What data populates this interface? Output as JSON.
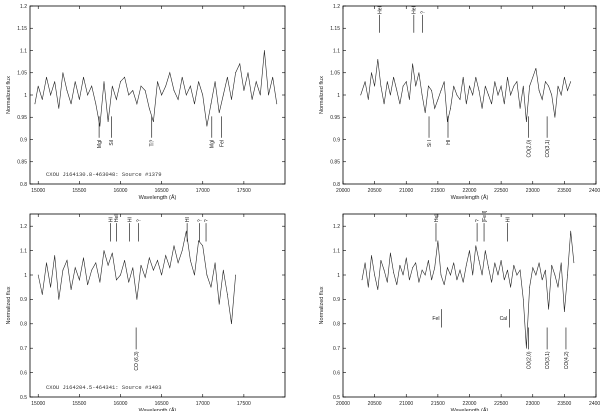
{
  "chart_data": [
    {
      "type": "line",
      "xlim": [
        14900,
        18000
      ],
      "ylim": [
        0.8,
        1.2
      ],
      "xticks": [
        15000,
        15500,
        16000,
        16500,
        17000,
        17500
      ],
      "yticks": [
        0.8,
        0.85,
        0.9,
        0.95,
        1,
        1.05,
        1.1,
        1.15,
        1.2
      ],
      "xlabel": "Wavelength (Å)",
      "ylabel": "Normalized flux",
      "caption": "CXOU J164130.8-463048: Source #1379",
      "series": [
        {
          "x": [
            14960,
            15000,
            15050,
            15100,
            15150,
            15200,
            15250,
            15300,
            15350,
            15400,
            15450,
            15500,
            15550,
            15600,
            15650,
            15700,
            15750,
            15800,
            15850,
            15900,
            15950,
            16000,
            16050,
            16100,
            16150,
            16200,
            16250,
            16300,
            16350,
            16400,
            16450,
            16500,
            16550,
            16600,
            16650,
            16700,
            16750,
            16800,
            16850,
            16900,
            16950,
            17000,
            17050,
            17100,
            17150,
            17200,
            17250,
            17300,
            17350,
            17400,
            17450,
            17500,
            17550,
            17600,
            17650,
            17700,
            17750,
            17800,
            17850,
            17900
          ],
          "y": [
            0.98,
            1.02,
            0.99,
            1.04,
            1.0,
            1.03,
            0.97,
            1.05,
            1.01,
            0.98,
            1.03,
            0.99,
            1.04,
            1.0,
            1.02,
            0.98,
            0.93,
            1.03,
            0.94,
            1.02,
            0.99,
            1.03,
            1.04,
            1.0,
            1.01,
            0.98,
            1.02,
            1.01,
            0.97,
            0.94,
            1.03,
            1.0,
            1.02,
            1.05,
            1.01,
            0.99,
            1.04,
            1.0,
            1.02,
            0.98,
            1.03,
            1.0,
            0.93,
            0.98,
            1.03,
            0.96,
            1.0,
            1.04,
            0.99,
            1.05,
            1.07,
            1.01,
            1.05,
            0.99,
            1.03,
            1.0,
            1.1,
            1.0,
            1.04,
            0.98
          ]
        }
      ],
      "annotations": [
        {
          "label": "MgI",
          "x": 15740,
          "dir": "down"
        },
        {
          "label": "SiI",
          "x": 15890,
          "dir": "down"
        },
        {
          "label": "Ti?",
          "x": 16380,
          "dir": "down"
        },
        {
          "label": "MgI",
          "x": 17110,
          "dir": "down"
        },
        {
          "label": "FeI",
          "x": 17230,
          "dir": "down"
        }
      ]
    },
    {
      "type": "line",
      "xlim": [
        20000,
        24000
      ],
      "ylim": [
        0.8,
        1.2
      ],
      "xticks": [
        20000,
        20500,
        21000,
        21500,
        22000,
        22500,
        23000,
        23500,
        24000
      ],
      "yticks": [
        0.8,
        0.85,
        0.9,
        0.95,
        1,
        1.05,
        1.1,
        1.15,
        1.2
      ],
      "xlabel": "Wavelength (Å)",
      "ylabel": "Normalized flux",
      "series": [
        {
          "x": [
            20280,
            20350,
            20400,
            20450,
            20500,
            20550,
            20600,
            20650,
            20700,
            20750,
            20800,
            20850,
            20900,
            20950,
            21000,
            21050,
            21100,
            21150,
            21200,
            21250,
            21300,
            21350,
            21400,
            21450,
            21500,
            21550,
            21600,
            21650,
            21700,
            21750,
            21800,
            21850,
            21900,
            21950,
            22000,
            22050,
            22100,
            22150,
            22200,
            22250,
            22300,
            22350,
            22400,
            22450,
            22500,
            22550,
            22600,
            22650,
            22700,
            22750,
            22800,
            22850,
            22900,
            22950,
            23000,
            23050,
            23100,
            23150,
            23200,
            23250,
            23300,
            23350,
            23400,
            23450,
            23500,
            23550,
            23600
          ],
          "y": [
            1.0,
            1.03,
            0.99,
            1.05,
            1.02,
            1.08,
            1.02,
            0.98,
            1.03,
            1.0,
            1.04,
            1.01,
            0.98,
            1.02,
            1.03,
            0.99,
            1.07,
            1.02,
            1.05,
            1.0,
            0.96,
            1.02,
            1.01,
            0.97,
            0.99,
            1.01,
            1.03,
            0.94,
            0.97,
            1.02,
            1.0,
            0.99,
            1.04,
            0.98,
            1.02,
            1.0,
            1.04,
            1.01,
            0.97,
            1.02,
            1.0,
            0.98,
            1.03,
            1.0,
            1.02,
            0.98,
            1.04,
            1.0,
            1.02,
            1.03,
            0.97,
            1.02,
            0.94,
            1.02,
            1.04,
            1.06,
            1.01,
            0.99,
            1.03,
            1.02,
            1.0,
            0.95,
            1.02,
            1.0,
            1.04,
            1.01,
            1.03
          ]
        }
      ],
      "annotations": [
        {
          "label": "HeI",
          "x": 20580,
          "dir": "up"
        },
        {
          "label": "HeI",
          "x": 21120,
          "dir": "up"
        },
        {
          "label": "?",
          "x": 21260,
          "dir": "up"
        },
        {
          "label": "Si I",
          "x": 21360,
          "dir": "down"
        },
        {
          "label": "HI",
          "x": 21660,
          "dir": "down"
        },
        {
          "label": "CO(2,0)",
          "x": 22935,
          "dir": "down"
        },
        {
          "label": "CO(3,1)",
          "x": 23227,
          "dir": "down"
        }
      ]
    },
    {
      "type": "line",
      "xlim": [
        14900,
        18000
      ],
      "ylim": [
        0.5,
        1.25
      ],
      "xticks": [
        15000,
        15500,
        16000,
        16500,
        17000,
        17500
      ],
      "yticks": [
        0.5,
        0.6,
        0.7,
        0.8,
        0.9,
        1,
        1.1,
        1.2
      ],
      "xlabel": "Wavelength (Å)",
      "ylabel": "Normalized flux",
      "caption": "CXOU J164204.5-464341: Source #1403",
      "series": [
        {
          "x": [
            15000,
            15050,
            15100,
            15150,
            15200,
            15250,
            15300,
            15350,
            15400,
            15450,
            15500,
            15550,
            15600,
            15650,
            15700,
            15750,
            15800,
            15850,
            15900,
            15950,
            16000,
            16050,
            16100,
            16150,
            16200,
            16250,
            16300,
            16350,
            16400,
            16450,
            16500,
            16550,
            16600,
            16650,
            16700,
            16750,
            16800,
            16850,
            16900,
            16950,
            17000,
            17050,
            17100,
            17150,
            17200,
            17250,
            17300,
            17350,
            17400
          ],
          "y": [
            1.0,
            0.92,
            1.05,
            0.95,
            1.08,
            0.9,
            1.02,
            1.06,
            0.94,
            1.03,
            0.98,
            1.07,
            0.96,
            1.02,
            1.05,
            0.97,
            1.1,
            1.04,
            1.09,
            0.98,
            1.0,
            1.06,
            0.97,
            1.03,
            0.9,
            1.04,
            0.99,
            1.07,
            1.02,
            1.06,
            1.0,
            1.08,
            1.03,
            1.12,
            1.05,
            1.1,
            1.18,
            1.06,
            1.0,
            1.14,
            1.12,
            1.0,
            0.95,
            1.05,
            0.88,
            1.02,
            0.92,
            0.8,
            1.0
          ]
        }
      ],
      "annotations": [
        {
          "label": "HI",
          "x": 15880,
          "dir": "up"
        },
        {
          "label": "HeI",
          "x": 15950,
          "dir": "up"
        },
        {
          "label": "HI",
          "x": 16110,
          "dir": "up"
        },
        {
          "label": "?",
          "x": 16220,
          "dir": "up"
        },
        {
          "label": "CO (6,3)",
          "x": 16190,
          "dir": "down"
        },
        {
          "label": "HI",
          "x": 16810,
          "dir": "up"
        },
        {
          "label": "?",
          "x": 16960,
          "dir": "up"
        },
        {
          "label": "?",
          "x": 17040,
          "dir": "up"
        }
      ]
    },
    {
      "type": "line",
      "xlim": [
        20000,
        24000
      ],
      "ylim": [
        0.5,
        1.25
      ],
      "xticks": [
        20000,
        20500,
        21000,
        21500,
        22000,
        22500,
        23000,
        23500,
        24000
      ],
      "yticks": [
        0.5,
        0.6,
        0.7,
        0.8,
        0.9,
        1,
        1.1,
        1.2
      ],
      "xlabel": "Wavelength (Å)",
      "ylabel": "Normalized flux",
      "series": [
        {
          "x": [
            20300,
            20350,
            20400,
            20450,
            20500,
            20550,
            20600,
            20650,
            20700,
            20750,
            20800,
            20850,
            20900,
            20950,
            21000,
            21050,
            21100,
            21150,
            21200,
            21250,
            21300,
            21350,
            21400,
            21450,
            21500,
            21550,
            21600,
            21650,
            21700,
            21750,
            21800,
            21850,
            21900,
            21950,
            22000,
            22050,
            22100,
            22150,
            22200,
            22250,
            22300,
            22350,
            22400,
            22450,
            22500,
            22550,
            22600,
            22650,
            22700,
            22750,
            22800,
            22850,
            22900,
            22950,
            23000,
            23050,
            23100,
            23150,
            23200,
            23250,
            23300,
            23350,
            23400,
            23450,
            23500,
            23550,
            23600,
            23650
          ],
          "y": [
            0.98,
            1.05,
            0.95,
            1.08,
            1.0,
            0.94,
            1.06,
            1.02,
            0.97,
            1.09,
            1.01,
            0.96,
            1.04,
            1.0,
            1.07,
            0.98,
            1.03,
            1.05,
            0.97,
            1.02,
            1.0,
            1.06,
            0.98,
            1.03,
            1.14,
            1.0,
            0.96,
            1.03,
            1.0,
            1.05,
            0.98,
            1.02,
            0.97,
            1.04,
            1.1,
            1.0,
            1.12,
            1.06,
            1.0,
            1.1,
            1.03,
            0.97,
            1.05,
            1.0,
            1.06,
            0.98,
            1.02,
            0.95,
            1.04,
            1.0,
            1.02,
            0.9,
            0.7,
            0.95,
            1.03,
            1.0,
            1.05,
            0.98,
            1.02,
            0.86,
            1.04,
            1.0,
            0.95,
            1.05,
            0.85,
            1.0,
            1.18,
            1.05
          ]
        }
      ],
      "annotations": [
        {
          "label": "HeI",
          "x": 21470,
          "dir": "up"
        },
        {
          "label": "FeI",
          "x": 21560,
          "dir": "downside"
        },
        {
          "label": "?",
          "x": 22120,
          "dir": "up"
        },
        {
          "label": "[FeII]",
          "x": 22230,
          "dir": "up"
        },
        {
          "label": "HI",
          "x": 22600,
          "dir": "up"
        },
        {
          "label": "CaI",
          "x": 22630,
          "dir": "downside"
        },
        {
          "label": "CO(2,0)",
          "x": 22935,
          "dir": "down"
        },
        {
          "label": "CO(3,1)",
          "x": 23227,
          "dir": "down"
        },
        {
          "label": "CO(4,2)",
          "x": 23525,
          "dir": "down"
        }
      ]
    }
  ]
}
